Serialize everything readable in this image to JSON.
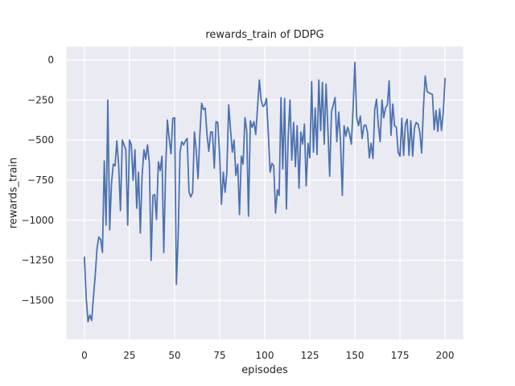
{
  "chart_data": {
    "type": "line",
    "title": "rewards_train of DDPG",
    "xlabel": "episodes",
    "ylabel": "rewards_train",
    "xticks": [
      0,
      25,
      50,
      75,
      100,
      125,
      150,
      175,
      200
    ],
    "yticks": [
      0,
      -250,
      -500,
      -750,
      -1000,
      -1250,
      -1500
    ],
    "xlim": [
      -10,
      210
    ],
    "ylim": [
      -1743,
      83
    ],
    "grid": true,
    "legend": false,
    "plot_background": "#EAEAF2",
    "gridline_color": "#FFFFFF",
    "line_color": "#4C72B0",
    "text_color": "#262626",
    "series": [
      {
        "name": "rewards_train",
        "x_start": 0,
        "x_step": 1,
        "values": [
          -1230,
          -1490,
          -1633,
          -1592,
          -1625,
          -1480,
          -1340,
          -1175,
          -1105,
          -1120,
          -1200,
          -630,
          -1030,
          -250,
          -1060,
          -775,
          -650,
          -660,
          -505,
          -660,
          -940,
          -500,
          -530,
          -560,
          -1030,
          -500,
          -530,
          -750,
          -560,
          -925,
          -700,
          -1080,
          -720,
          -560,
          -620,
          -530,
          -640,
          -1250,
          -845,
          -840,
          -995,
          -635,
          -690,
          -600,
          -1200,
          -690,
          -375,
          -490,
          -585,
          -365,
          -360,
          -1400,
          -1100,
          -575,
          -510,
          -530,
          -505,
          -490,
          -825,
          -855,
          -825,
          -450,
          -560,
          -740,
          -475,
          -270,
          -310,
          -300,
          -470,
          -570,
          -450,
          -450,
          -675,
          -385,
          -390,
          -600,
          -900,
          -700,
          -825,
          -700,
          -280,
          -430,
          -575,
          -500,
          -720,
          -650,
          -965,
          -600,
          -650,
          -360,
          -440,
          -975,
          -380,
          -420,
          -385,
          -465,
          -300,
          -125,
          -250,
          -290,
          -280,
          -240,
          -465,
          -700,
          -645,
          -660,
          -955,
          -810,
          -845,
          -235,
          -680,
          -240,
          -930,
          -480,
          -250,
          -625,
          -390,
          -665,
          -410,
          -800,
          -450,
          -525,
          -400,
          -785,
          -520,
          -610,
          -135,
          -575,
          -300,
          -590,
          -125,
          -440,
          -140,
          -525,
          -150,
          -420,
          -725,
          -325,
          -280,
          -235,
          -510,
          -325,
          -500,
          -845,
          -410,
          -475,
          -420,
          -460,
          -525,
          -300,
          -15,
          -360,
          -410,
          -350,
          -490,
          -410,
          -405,
          -450,
          -610,
          -520,
          -615,
          -310,
          -245,
          -410,
          -510,
          -250,
          -360,
          -300,
          -280,
          -130,
          -470,
          -275,
          -410,
          -420,
          -575,
          -600,
          -365,
          -595,
          -400,
          -370,
          -595,
          -380,
          -600,
          -425,
          -390,
          -400,
          -450,
          -580,
          -300,
          -100,
          -195,
          -205,
          -210,
          -215,
          -435,
          -315,
          -445,
          -305,
          -440,
          -330,
          -115
        ]
      }
    ]
  }
}
